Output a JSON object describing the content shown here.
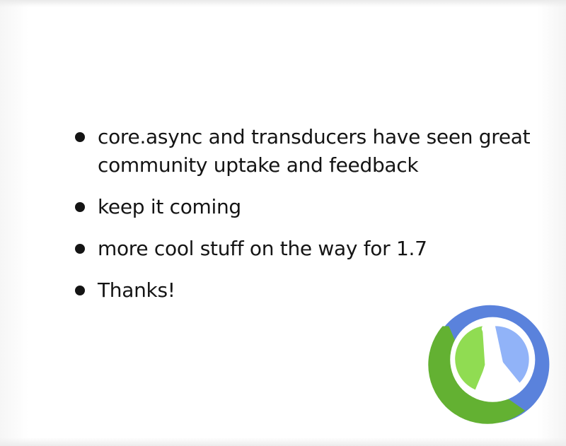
{
  "slide": {
    "bullets": [
      {
        "text": "core.async and transducers have seen great community uptake and feedback"
      },
      {
        "text": "keep it coming"
      },
      {
        "text": "more cool stuff on the way for 1.7"
      },
      {
        "text": "Thanks!"
      }
    ],
    "logo": {
      "icon": "clojure-logo-icon",
      "colors": {
        "blue": "#5a82dc",
        "light_blue": "#91b3f8",
        "green": "#63b132",
        "light_green": "#90dc52"
      }
    }
  }
}
